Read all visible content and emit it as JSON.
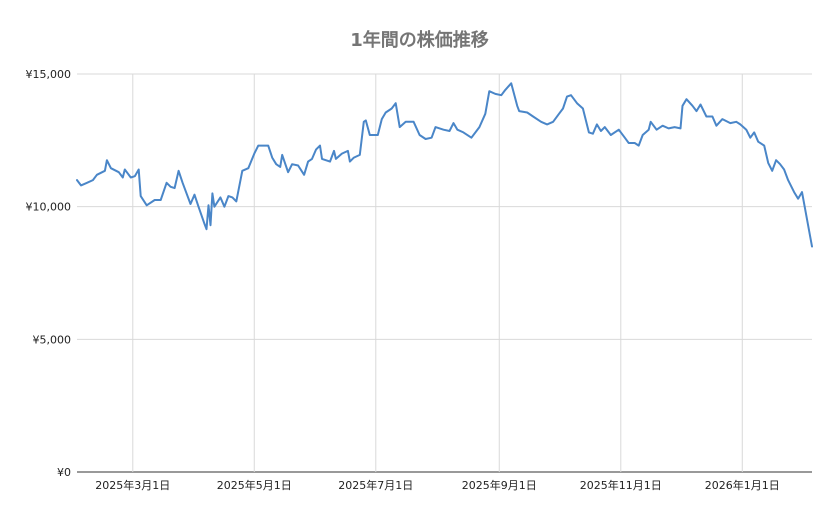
{
  "chart_data": {
    "type": "line",
    "title": "1年間の株価推移",
    "xlabel": "",
    "ylabel": "",
    "x_range": [
      "2025-02-01",
      "2026-02-05"
    ],
    "ylim": [
      0,
      15000
    ],
    "grid": true,
    "legend": "none",
    "line_color": "#4a86c8",
    "y_ticks": [
      {
        "value": 0,
        "label": "¥0"
      },
      {
        "value": 5000,
        "label": "¥5,000"
      },
      {
        "value": 10000,
        "label": "¥10,000"
      },
      {
        "value": 15000,
        "label": "¥15,000"
      }
    ],
    "x_ticks": [
      {
        "date": "2025-03-01",
        "label": "2025年3月1日"
      },
      {
        "date": "2025-05-01",
        "label": "2025年5月1日"
      },
      {
        "date": "2025-07-01",
        "label": "2025年7月1日"
      },
      {
        "date": "2025-09-01",
        "label": "2025年9月1日"
      },
      {
        "date": "2025-11-01",
        "label": "2025年11月1日"
      },
      {
        "date": "2026-01-01",
        "label": "2026年1月1日"
      }
    ],
    "series": [
      {
        "points": [
          [
            "2025-02-01",
            11000
          ],
          [
            "2025-02-03",
            10800
          ],
          [
            "2025-02-06",
            10900
          ],
          [
            "2025-02-09",
            11000
          ],
          [
            "2025-02-11",
            11200
          ],
          [
            "2025-02-15",
            11350
          ],
          [
            "2025-02-16",
            11750
          ],
          [
            "2025-02-18",
            11450
          ],
          [
            "2025-02-22",
            11300
          ],
          [
            "2025-02-24",
            11100
          ],
          [
            "2025-02-25",
            11400
          ],
          [
            "2025-02-28",
            11100
          ],
          [
            "2025-03-02",
            11150
          ],
          [
            "2025-03-04",
            11400
          ],
          [
            "2025-03-05",
            10400
          ],
          [
            "2025-03-08",
            10050
          ],
          [
            "2025-03-12",
            10250
          ],
          [
            "2025-03-15",
            10250
          ],
          [
            "2025-03-18",
            10900
          ],
          [
            "2025-03-20",
            10750
          ],
          [
            "2025-03-22",
            10700
          ],
          [
            "2025-03-24",
            11350
          ],
          [
            "2025-03-26",
            10900
          ],
          [
            "2025-03-30",
            10100
          ],
          [
            "2025-04-01",
            10450
          ],
          [
            "2025-04-03",
            10000
          ],
          [
            "2025-04-06",
            9350
          ],
          [
            "2025-04-07",
            9150
          ],
          [
            "2025-04-08",
            10050
          ],
          [
            "2025-04-09",
            9300
          ],
          [
            "2025-04-10",
            10500
          ],
          [
            "2025-04-11",
            10000
          ],
          [
            "2025-04-14",
            10350
          ],
          [
            "2025-04-16",
            10000
          ],
          [
            "2025-04-18",
            10400
          ],
          [
            "2025-04-20",
            10350
          ],
          [
            "2025-04-22",
            10200
          ],
          [
            "2025-04-25",
            11350
          ],
          [
            "2025-04-28",
            11450
          ],
          [
            "2025-05-01",
            12000
          ],
          [
            "2025-05-03",
            12300
          ],
          [
            "2025-05-08",
            12300
          ],
          [
            "2025-05-10",
            11850
          ],
          [
            "2025-05-12",
            11600
          ],
          [
            "2025-05-14",
            11500
          ],
          [
            "2025-05-15",
            11950
          ],
          [
            "2025-05-18",
            11300
          ],
          [
            "2025-05-20",
            11600
          ],
          [
            "2025-05-23",
            11550
          ],
          [
            "2025-05-26",
            11200
          ],
          [
            "2025-05-28",
            11700
          ],
          [
            "2025-05-30",
            11800
          ],
          [
            "2025-06-01",
            12150
          ],
          [
            "2025-06-03",
            12300
          ],
          [
            "2025-06-04",
            11800
          ],
          [
            "2025-06-08",
            11700
          ],
          [
            "2025-06-10",
            12100
          ],
          [
            "2025-06-11",
            11800
          ],
          [
            "2025-06-14",
            12000
          ],
          [
            "2025-06-17",
            12100
          ],
          [
            "2025-06-18",
            11700
          ],
          [
            "2025-06-20",
            11850
          ],
          [
            "2025-06-23",
            11950
          ],
          [
            "2025-06-25",
            13200
          ],
          [
            "2025-06-26",
            13250
          ],
          [
            "2025-06-28",
            12700
          ],
          [
            "2025-07-02",
            12700
          ],
          [
            "2025-07-04",
            13300
          ],
          [
            "2025-07-06",
            13550
          ],
          [
            "2025-07-09",
            13700
          ],
          [
            "2025-07-11",
            13900
          ],
          [
            "2025-07-13",
            13000
          ],
          [
            "2025-07-16",
            13200
          ],
          [
            "2025-07-20",
            13200
          ],
          [
            "2025-07-23",
            12700
          ],
          [
            "2025-07-26",
            12550
          ],
          [
            "2025-07-29",
            12600
          ],
          [
            "2025-07-31",
            13000
          ],
          [
            "2025-08-04",
            12900
          ],
          [
            "2025-08-07",
            12850
          ],
          [
            "2025-08-09",
            13150
          ],
          [
            "2025-08-11",
            12900
          ],
          [
            "2025-08-14",
            12800
          ],
          [
            "2025-08-18",
            12600
          ],
          [
            "2025-08-22",
            13000
          ],
          [
            "2025-08-25",
            13500
          ],
          [
            "2025-08-27",
            14350
          ],
          [
            "2025-08-30",
            14250
          ],
          [
            "2025-09-02",
            14200
          ],
          [
            "2025-09-04",
            14400
          ],
          [
            "2025-09-07",
            14650
          ],
          [
            "2025-09-10",
            13800
          ],
          [
            "2025-09-11",
            13600
          ],
          [
            "2025-09-15",
            13550
          ],
          [
            "2025-09-18",
            13400
          ],
          [
            "2025-09-22",
            13200
          ],
          [
            "2025-09-25",
            13100
          ],
          [
            "2025-09-28",
            13200
          ],
          [
            "2025-10-01",
            13500
          ],
          [
            "2025-10-03",
            13700
          ],
          [
            "2025-10-05",
            14150
          ],
          [
            "2025-10-07",
            14200
          ],
          [
            "2025-10-10",
            13900
          ],
          [
            "2025-10-13",
            13700
          ],
          [
            "2025-10-16",
            12800
          ],
          [
            "2025-10-18",
            12750
          ],
          [
            "2025-10-20",
            13100
          ],
          [
            "2025-10-22",
            12850
          ],
          [
            "2025-10-24",
            13000
          ],
          [
            "2025-10-27",
            12700
          ],
          [
            "2025-10-31",
            12900
          ],
          [
            "2025-11-03",
            12600
          ],
          [
            "2025-11-05",
            12400
          ],
          [
            "2025-11-08",
            12400
          ],
          [
            "2025-11-10",
            12300
          ],
          [
            "2025-11-12",
            12700
          ],
          [
            "2025-11-15",
            12900
          ],
          [
            "2025-11-16",
            13200
          ],
          [
            "2025-11-19",
            12900
          ],
          [
            "2025-11-22",
            13050
          ],
          [
            "2025-11-25",
            12950
          ],
          [
            "2025-11-28",
            13000
          ],
          [
            "2025-12-01",
            12950
          ],
          [
            "2025-12-02",
            13800
          ],
          [
            "2025-12-04",
            14050
          ],
          [
            "2025-12-07",
            13800
          ],
          [
            "2025-12-09",
            13600
          ],
          [
            "2025-12-11",
            13850
          ],
          [
            "2025-12-14",
            13400
          ],
          [
            "2025-12-17",
            13400
          ],
          [
            "2025-12-19",
            13050
          ],
          [
            "2025-12-22",
            13300
          ],
          [
            "2025-12-26",
            13150
          ],
          [
            "2025-12-29",
            13200
          ],
          [
            "2025-12-31",
            13100
          ],
          [
            "2026-01-03",
            12900
          ],
          [
            "2026-01-05",
            12600
          ],
          [
            "2026-01-07",
            12800
          ],
          [
            "2026-01-09",
            12450
          ],
          [
            "2026-01-12",
            12300
          ],
          [
            "2026-01-14",
            11650
          ],
          [
            "2026-01-16",
            11350
          ],
          [
            "2026-01-18",
            11750
          ],
          [
            "2026-01-20",
            11600
          ],
          [
            "2026-01-22",
            11400
          ],
          [
            "2026-01-24",
            11000
          ],
          [
            "2026-01-27",
            10550
          ],
          [
            "2026-01-29",
            10300
          ],
          [
            "2026-01-31",
            10550
          ],
          [
            "2026-02-05",
            8500
          ]
        ]
      }
    ]
  }
}
